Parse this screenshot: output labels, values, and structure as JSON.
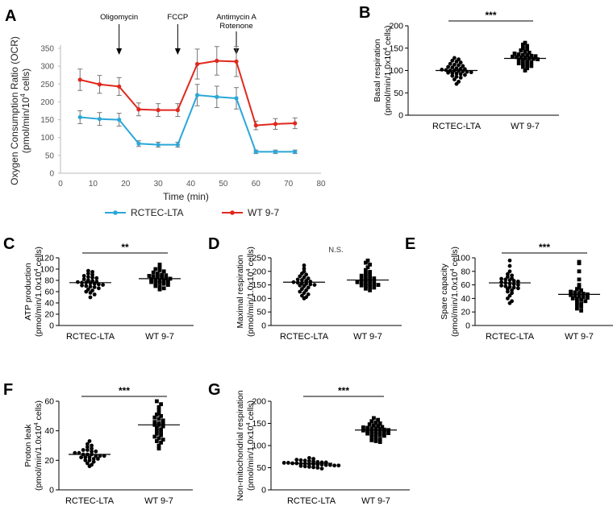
{
  "chart_data": [
    {
      "id": "A",
      "type": "line",
      "panel_label": "A",
      "ylabel_line1": "Oxygen Consumption Ratio (OCR)",
      "ylabel_line2": "(pmol/min/10⁴ cells)",
      "xlabel": "Time (min)",
      "xlim": [
        0,
        80
      ],
      "ylim": [
        0,
        350
      ],
      "x_ticks": [
        "0",
        "10",
        "20",
        "30",
        "40",
        "50",
        "60",
        "70",
        "80"
      ],
      "y_ticks": [
        "0",
        "50",
        "100",
        "150",
        "200",
        "250",
        "300",
        "350"
      ],
      "annotations": [
        {
          "text": "Oligomycin",
          "x": 18
        },
        {
          "text": "FCCP",
          "x": 36
        },
        {
          "text": "Antimycin A",
          "text2": "Rotenone",
          "x": 54
        }
      ],
      "x": [
        6,
        12,
        18,
        24,
        30,
        36,
        42,
        48,
        54,
        60,
        66,
        72
      ],
      "series": [
        {
          "name": "RCTEC-LTA",
          "color": "#2aa7d8",
          "values": [
            157,
            152,
            150,
            83,
            80,
            80,
            219,
            214,
            210,
            60,
            60,
            60
          ],
          "errors": [
            18,
            18,
            18,
            8,
            7,
            7,
            30,
            30,
            30,
            5,
            5,
            5
          ]
        },
        {
          "name": "WT 9-7",
          "color": "#e0281e",
          "values": [
            262,
            249,
            243,
            179,
            177,
            177,
            306,
            315,
            313,
            134,
            138,
            140
          ],
          "errors": [
            30,
            25,
            25,
            18,
            18,
            18,
            42,
            40,
            42,
            12,
            15,
            15
          ]
        }
      ]
    },
    {
      "id": "B",
      "type": "scatter",
      "panel_label": "B",
      "ylabel_line1": "Basal respiration",
      "ylabel_line2": "(pmol/min/1.0x10⁴ cells)",
      "categories": [
        "RCTEC-LTA",
        "WT 9-7"
      ],
      "ylim": [
        0,
        200
      ],
      "y_ticks": [
        "0",
        "50",
        "100",
        "150",
        "200"
      ],
      "significance": "***",
      "groups": [
        {
          "name": "RCTEC-LTA",
          "marker": "circle",
          "mean": 100,
          "values": [
            128,
            125,
            122,
            120,
            118,
            115,
            113,
            112,
            110,
            108,
            107,
            105,
            104,
            103,
            102,
            101,
            100,
            100,
            99,
            98,
            97,
            96,
            95,
            94,
            93,
            92,
            90,
            88,
            86,
            84,
            80,
            75,
            70
          ]
        },
        {
          "name": "WT 9-7",
          "marker": "square",
          "mean": 127,
          "values": [
            162,
            158,
            155,
            150,
            148,
            145,
            142,
            140,
            138,
            136,
            135,
            134,
            133,
            132,
            131,
            130,
            129,
            128,
            127,
            126,
            125,
            124,
            122,
            120,
            118,
            116,
            114,
            112,
            110,
            108,
            105,
            100
          ]
        }
      ]
    },
    {
      "id": "C",
      "type": "scatter",
      "panel_label": "C",
      "ylabel_line1": "ATP production",
      "ylabel_line2": "(pmol/min/1.0x10⁴ cells)",
      "categories": [
        "RCTEC-LTA",
        "WT 9-7"
      ],
      "ylim": [
        0,
        120
      ],
      "y_ticks": [
        "0",
        "20",
        "40",
        "60",
        "80",
        "100",
        "120"
      ],
      "significance": "**",
      "groups": [
        {
          "name": "RCTEC-LTA",
          "marker": "circle",
          "mean": 76,
          "values": [
            97,
            95,
            92,
            90,
            88,
            86,
            85,
            84,
            82,
            80,
            79,
            78,
            77,
            76,
            76,
            75,
            74,
            73,
            72,
            71,
            70,
            69,
            68,
            66,
            64,
            62,
            60,
            58,
            55,
            50
          ]
        },
        {
          "name": "WT 9-7",
          "marker": "square",
          "mean": 83,
          "values": [
            108,
            104,
            100,
            98,
            96,
            94,
            92,
            90,
            89,
            88,
            87,
            86,
            85,
            84,
            83,
            82,
            81,
            80,
            79,
            78,
            77,
            76,
            75,
            74,
            72,
            70,
            68,
            66,
            64
          ]
        }
      ]
    },
    {
      "id": "D",
      "type": "scatter",
      "panel_label": "D",
      "ylabel_line1": "Maximal respiration",
      "ylabel_line2": "(pmol/min/1.0x10⁴ cells)",
      "categories": [
        "RCTEC-LTA",
        "WT 9-7"
      ],
      "ylim": [
        0,
        250
      ],
      "y_ticks": [
        "0",
        "50",
        "100",
        "150",
        "200",
        "250"
      ],
      "significance": "N.S.",
      "groups": [
        {
          "name": "RCTEC-LTA",
          "marker": "circle",
          "mean": 160,
          "values": [
            222,
            210,
            200,
            192,
            188,
            182,
            178,
            174,
            170,
            168,
            165,
            162,
            160,
            158,
            156,
            154,
            152,
            150,
            148,
            145,
            140,
            135,
            130,
            125,
            120,
            115,
            110,
            105,
            100
          ]
        },
        {
          "name": "WT 9-7",
          "marker": "square",
          "mean": 168,
          "values": [
            240,
            232,
            225,
            215,
            205,
            198,
            192,
            188,
            184,
            180,
            177,
            174,
            171,
            168,
            165,
            162,
            160,
            158,
            156,
            154,
            152,
            150,
            148,
            146,
            144,
            140,
            136,
            130
          ]
        }
      ]
    },
    {
      "id": "E",
      "type": "scatter",
      "panel_label": "E",
      "ylabel_line1": "Spare capacity",
      "ylabel_line2": "(pmol/min/1.0x10⁴ cells)",
      "categories": [
        "RCTEC-LTA",
        "WT 9-7"
      ],
      "ylim": [
        0,
        100
      ],
      "y_ticks": [
        "0",
        "20",
        "40",
        "60",
        "80",
        "100"
      ],
      "significance": "***",
      "groups": [
        {
          "name": "RCTEC-LTA",
          "marker": "circle",
          "mean": 63,
          "values": [
            96,
            88,
            80,
            76,
            74,
            72,
            70,
            69,
            68,
            67,
            66,
            65,
            64,
            63,
            62,
            61,
            60,
            59,
            58,
            57,
            56,
            55,
            54,
            52,
            50,
            48,
            44,
            40,
            36,
            33
          ]
        },
        {
          "name": "WT 9-7",
          "marker": "square",
          "mean": 46,
          "values": [
            94,
            92,
            80,
            68,
            60,
            56,
            54,
            52,
            50,
            49,
            48,
            47,
            46,
            45,
            44,
            43,
            42,
            41,
            40,
            39,
            38,
            36,
            34,
            32,
            30,
            28,
            25,
            22
          ]
        }
      ]
    },
    {
      "id": "F",
      "type": "scatter",
      "panel_label": "F",
      "ylabel_line1": "Proton leak",
      "ylabel_line2": "(pmol/min/1.0x10⁴ cells)",
      "categories": [
        "RCTEC-LTA",
        "WT 9-7"
      ],
      "ylim": [
        0,
        60
      ],
      "y_ticks": [
        "0",
        "20",
        "40",
        "60"
      ],
      "significance": "***",
      "groups": [
        {
          "name": "RCTEC-LTA",
          "marker": "circle",
          "mean": 24,
          "values": [
            33,
            31,
            30,
            29,
            28,
            27,
            27,
            26,
            26,
            25,
            25,
            24,
            24,
            24,
            23,
            23,
            23,
            22,
            22,
            22,
            21,
            21,
            20,
            20,
            19,
            18,
            17,
            16
          ]
        },
        {
          "name": "WT 9-7",
          "marker": "square",
          "mean": 44,
          "values": [
            60,
            58,
            56,
            54,
            52,
            51,
            50,
            49,
            48,
            47,
            46,
            45,
            45,
            44,
            44,
            43,
            42,
            41,
            40,
            39,
            38,
            37,
            36,
            35,
            34,
            33,
            32,
            30,
            28
          ]
        }
      ]
    },
    {
      "id": "G",
      "type": "scatter",
      "panel_label": "G",
      "ylabel_line1": "Non-mitochondrial respiration",
      "ylabel_line2": "(pmol/min/1.0x10⁴ cells)",
      "categories": [
        "RCTEC-LTA",
        "WT 9-7"
      ],
      "ylim": [
        0,
        200
      ],
      "y_ticks": [
        "0",
        "50",
        "100",
        "150",
        "200"
      ],
      "significance": "***",
      "groups": [
        {
          "name": "RCTEC-LTA",
          "marker": "circle",
          "mean": 60,
          "values": [
            72,
            70,
            68,
            67,
            66,
            65,
            64,
            63,
            62,
            62,
            61,
            61,
            60,
            60,
            59,
            59,
            58,
            58,
            57,
            57,
            56,
            56,
            55,
            55,
            54,
            53,
            52,
            51,
            50,
            48
          ]
        },
        {
          "name": "WT 9-7",
          "marker": "square",
          "mean": 135,
          "values": [
            162,
            158,
            155,
            152,
            150,
            148,
            146,
            144,
            142,
            141,
            140,
            139,
            138,
            137,
            136,
            135,
            134,
            133,
            132,
            131,
            130,
            129,
            128,
            127,
            126,
            125,
            124,
            122,
            120,
            118,
            115,
            112,
            110,
            108
          ]
        }
      ]
    }
  ]
}
